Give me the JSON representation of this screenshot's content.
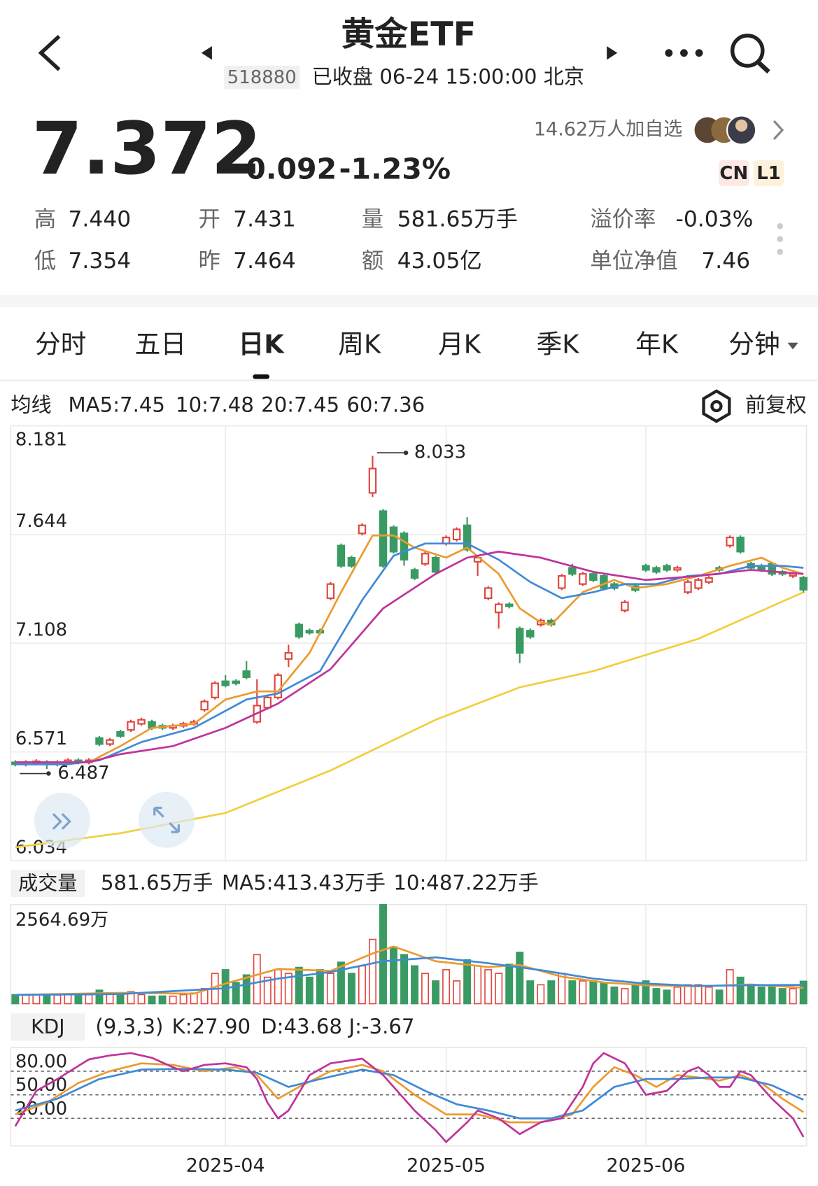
{
  "header": {
    "title": "黄金ETF",
    "code": "518880",
    "status": "已收盘 06-24 15:00:00 北京",
    "followers": "14.62万人加自选"
  },
  "quote": {
    "price": "7.372",
    "change": "-0.092",
    "change_pct": "-1.23%",
    "badges": [
      "CN",
      "L1"
    ]
  },
  "stats": [
    {
      "label": "高",
      "value": "7.440"
    },
    {
      "label": "开",
      "value": "7.431"
    },
    {
      "label": "量",
      "value": "581.65万手"
    },
    {
      "label": "溢价率",
      "value": "-0.03%"
    },
    {
      "label": "低",
      "value": "7.354"
    },
    {
      "label": "昨",
      "value": "7.464"
    },
    {
      "label": "额",
      "value": "43.05亿"
    },
    {
      "label": "单位净值",
      "value": "7.46"
    }
  ],
  "tabs": [
    "分时",
    "五日",
    "日K",
    "周K",
    "月K",
    "季K",
    "年K",
    "分钟"
  ],
  "selected_tab": 2,
  "chart_data": [
    {
      "type": "candlestick",
      "legend_title": "均线",
      "adjust": "前复权",
      "up_color": "#e0463f",
      "down_color": "#3a9a63",
      "ylim": [
        6.034,
        8.181
      ],
      "yticks": [
        6.034,
        6.571,
        7.108,
        7.644,
        8.181
      ],
      "grid": true,
      "open": [
        6.52,
        6.51,
        6.515,
        6.52,
        6.51,
        6.52,
        6.53,
        6.52,
        6.64,
        6.61,
        6.67,
        6.68,
        6.71,
        6.72,
        6.7,
        6.69,
        6.7,
        6.71,
        6.78,
        6.84,
        6.92,
        6.92,
        6.97,
        6.72,
        6.79,
        6.84,
        7.03,
        7.2,
        7.17,
        7.17,
        7.33,
        7.59,
        7.53,
        7.65,
        7.85,
        7.76,
        7.68,
        7.65,
        7.47,
        7.5,
        7.53,
        7.6,
        7.62,
        7.69,
        7.51,
        7.33,
        7.26,
        7.3,
        7.18,
        7.17,
        7.2,
        7.22,
        7.38,
        7.48,
        7.4,
        7.45,
        7.44,
        7.4,
        7.27,
        7.39,
        7.49,
        7.48,
        7.49,
        7.47,
        7.36,
        7.38,
        7.41,
        7.48,
        7.59,
        7.63,
        7.5,
        7.49,
        7.5,
        7.46,
        7.44,
        7.431
      ],
      "high": [
        6.53,
        6.53,
        6.535,
        6.53,
        6.53,
        6.54,
        6.54,
        6.54,
        6.65,
        6.64,
        6.68,
        6.73,
        6.74,
        6.73,
        6.71,
        6.71,
        6.72,
        6.73,
        6.83,
        6.92,
        6.95,
        6.93,
        7.02,
        6.93,
        6.85,
        6.96,
        7.1,
        7.21,
        7.18,
        7.18,
        7.41,
        7.6,
        7.54,
        7.7,
        8.033,
        7.77,
        7.69,
        7.66,
        7.48,
        7.56,
        7.54,
        7.64,
        7.68,
        7.73,
        7.54,
        7.39,
        7.31,
        7.31,
        7.19,
        7.18,
        7.23,
        7.23,
        7.45,
        7.5,
        7.46,
        7.46,
        7.45,
        7.41,
        7.32,
        7.4,
        7.5,
        7.49,
        7.5,
        7.49,
        7.42,
        7.43,
        7.44,
        7.49,
        7.64,
        7.64,
        7.51,
        7.5,
        7.51,
        7.47,
        7.46,
        7.44
      ],
      "low": [
        6.5,
        6.5,
        6.505,
        6.487,
        6.5,
        6.51,
        6.51,
        6.51,
        6.6,
        6.6,
        6.64,
        6.67,
        6.7,
        6.68,
        6.68,
        6.68,
        6.69,
        6.7,
        6.77,
        6.83,
        6.89,
        6.9,
        6.93,
        6.71,
        6.78,
        6.83,
        6.99,
        7.13,
        7.15,
        7.15,
        7.32,
        7.48,
        7.48,
        7.64,
        7.83,
        7.48,
        7.55,
        7.49,
        7.42,
        7.49,
        7.45,
        7.59,
        7.61,
        7.56,
        7.44,
        7.32,
        7.18,
        7.28,
        7.01,
        7.13,
        7.19,
        7.19,
        7.37,
        7.44,
        7.39,
        7.41,
        7.37,
        7.37,
        7.26,
        7.36,
        7.46,
        7.45,
        7.46,
        7.46,
        7.35,
        7.37,
        7.4,
        7.46,
        7.58,
        7.55,
        7.47,
        7.46,
        7.44,
        7.44,
        7.43,
        7.354
      ],
      "close": [
        6.51,
        6.52,
        6.525,
        6.51,
        6.52,
        6.53,
        6.52,
        6.53,
        6.61,
        6.63,
        6.65,
        6.72,
        6.73,
        6.69,
        6.69,
        6.7,
        6.71,
        6.72,
        6.82,
        6.91,
        6.9,
        6.91,
        6.94,
        6.8,
        6.84,
        6.95,
        7.06,
        7.14,
        7.16,
        7.16,
        7.4,
        7.49,
        7.49,
        7.69,
        7.97,
        7.49,
        7.56,
        7.52,
        7.43,
        7.55,
        7.46,
        7.63,
        7.67,
        7.57,
        7.53,
        7.38,
        7.3,
        7.29,
        7.06,
        7.14,
        7.22,
        7.2,
        7.44,
        7.45,
        7.45,
        7.42,
        7.38,
        7.38,
        7.31,
        7.37,
        7.47,
        7.46,
        7.47,
        7.48,
        7.41,
        7.42,
        7.43,
        7.47,
        7.63,
        7.56,
        7.48,
        7.47,
        7.45,
        7.45,
        7.45,
        7.372
      ],
      "series": [
        {
          "name": "MA5:7.45",
          "color": "#eb9b2e",
          "x": [
            0,
            7,
            10,
            13,
            17,
            20,
            23,
            25,
            28,
            31,
            34,
            36,
            38,
            41,
            43,
            46,
            48,
            50,
            51,
            54,
            57,
            59,
            62,
            65,
            68,
            71,
            73,
            75
          ],
          "values": [
            6.52,
            6.52,
            6.6,
            6.69,
            6.71,
            6.83,
            6.87,
            6.87,
            7.06,
            7.36,
            7.64,
            7.64,
            7.58,
            7.53,
            7.58,
            7.45,
            7.28,
            7.21,
            7.2,
            7.36,
            7.42,
            7.38,
            7.4,
            7.44,
            7.49,
            7.53,
            7.48,
            7.45
          ]
        },
        {
          "name": "10:7.48",
          "color": "#3f8ad8",
          "x": [
            0,
            5,
            8,
            12,
            17,
            22,
            25,
            29,
            33,
            36,
            39,
            43,
            46,
            49,
            52,
            55,
            58,
            61,
            64,
            67,
            70,
            73,
            75
          ],
          "values": [
            6.51,
            6.51,
            6.53,
            6.62,
            6.69,
            6.83,
            6.86,
            6.97,
            7.32,
            7.54,
            7.6,
            7.6,
            7.52,
            7.41,
            7.33,
            7.36,
            7.4,
            7.4,
            7.44,
            7.45,
            7.49,
            7.49,
            7.48
          ]
        },
        {
          "name": "20:7.45",
          "color": "#c0339b",
          "x": [
            0,
            7,
            10,
            15,
            20,
            25,
            30,
            35,
            40,
            43,
            46,
            50,
            55,
            60,
            65,
            70,
            75
          ],
          "values": [
            6.52,
            6.52,
            6.56,
            6.6,
            6.69,
            6.81,
            6.98,
            7.28,
            7.45,
            7.53,
            7.56,
            7.53,
            7.46,
            7.42,
            7.44,
            7.47,
            7.45
          ]
        },
        {
          "name": "60:7.36",
          "color": "#f0cf3c",
          "x": [
            0,
            10,
            20,
            30,
            40,
            48,
            55,
            65,
            75
          ],
          "values": [
            6.1,
            6.17,
            6.27,
            6.48,
            6.73,
            6.89,
            6.97,
            7.13,
            7.36
          ]
        }
      ]
    },
    {
      "type": "bar",
      "label": "成交量",
      "summary": "581.65万手",
      "ylim": [
        0,
        2564.69
      ],
      "yticks": [
        {
          "value": 2564.69,
          "label": "2564.69万"
        }
      ],
      "values": [
        235,
        220,
        240,
        230,
        225,
        235,
        240,
        230,
        350,
        240,
        275,
        310,
        235,
        195,
        200,
        195,
        235,
        275,
        390,
        785,
        880,
        550,
        745,
        1270,
        685,
        880,
        785,
        940,
        685,
        880,
        785,
        1075,
        785,
        980,
        1665,
        2564.69,
        1470,
        1270,
        980,
        785,
        590,
        880,
        590,
        1135,
        980,
        880,
        785,
        1020,
        1330,
        590,
        490,
        590,
        785,
        590,
        590,
        590,
        550,
        430,
        390,
        490,
        590,
        390,
        350,
        430,
        490,
        490,
        430,
        350,
        880,
        685,
        490,
        430,
        430,
        390,
        390,
        581.65
      ],
      "series": [
        {
          "name": "MA5:413.43万手",
          "color": "#eb9b2e",
          "x": [
            0,
            10,
            17,
            20,
            25,
            30,
            34,
            36,
            40,
            45,
            48,
            52,
            56,
            60,
            65,
            70,
            75
          ],
          "values": [
            230,
            280,
            260,
            520,
            900,
            850,
            1300,
            1480,
            1100,
            950,
            1000,
            700,
            550,
            480,
            450,
            500,
            413.43
          ]
        },
        {
          "name": "10:487.22万手",
          "color": "#3f8ad8",
          "x": [
            0,
            10,
            20,
            25,
            30,
            35,
            40,
            45,
            50,
            55,
            60,
            65,
            70,
            75
          ],
          "values": [
            230,
            250,
            400,
            650,
            820,
            1100,
            1200,
            1050,
            870,
            650,
            520,
            460,
            480,
            487.22
          ]
        }
      ]
    },
    {
      "type": "line",
      "label": "KDJ",
      "params": "(9,3,3)",
      "ylim": [
        -15,
        110
      ],
      "yticks": [
        {
          "value": 20,
          "label": "20.00"
        },
        {
          "value": 50,
          "label": "50.00"
        },
        {
          "value": 80,
          "label": "80.00"
        }
      ],
      "categories": [
        null,
        null,
        null,
        null,
        null,
        null,
        null,
        null,
        null,
        null,
        null,
        null,
        null,
        null,
        null,
        null,
        null,
        null,
        null,
        null,
        "2025-04",
        null,
        null,
        null,
        null,
        null,
        null,
        null,
        null,
        null,
        null,
        null,
        null,
        null,
        null,
        null,
        null,
        null,
        null,
        null,
        null,
        "2025-05",
        null,
        null,
        null,
        null,
        null,
        null,
        null,
        null,
        null,
        null,
        null,
        null,
        null,
        null,
        null,
        null,
        null,
        null,
        "2025-06",
        null,
        null,
        null,
        null,
        null,
        null,
        null,
        null,
        null,
        null,
        null,
        null,
        null,
        null,
        null
      ],
      "series": [
        {
          "name": "K:27.90",
          "color": "#eb9b2e",
          "x": [
            0,
            3,
            6,
            9,
            12,
            15,
            18,
            21,
            23,
            25,
            27,
            30,
            33,
            35,
            38,
            41,
            44,
            47,
            50,
            53,
            55,
            57,
            59,
            61,
            63,
            65,
            67,
            69,
            71,
            73,
            75
          ],
          "values": [
            25,
            40,
            65,
            80,
            90,
            88,
            80,
            85,
            75,
            45,
            60,
            80,
            88,
            80,
            50,
            25,
            25,
            15,
            15,
            25,
            60,
            85,
            75,
            60,
            75,
            72,
            68,
            75,
            65,
            45,
            27.9
          ]
        },
        {
          "name": "D:43.68",
          "color": "#3f8ad8",
          "x": [
            0,
            4,
            8,
            12,
            16,
            20,
            23,
            26,
            29,
            33,
            36,
            39,
            42,
            45,
            48,
            51,
            54,
            57,
            60,
            63,
            66,
            69,
            72,
            75
          ],
          "values": [
            30,
            45,
            70,
            82,
            83,
            82,
            78,
            60,
            70,
            82,
            75,
            55,
            38,
            30,
            20,
            20,
            30,
            60,
            70,
            70,
            72,
            72,
            62,
            43.68
          ]
        },
        {
          "name": "J:-3.67",
          "color": "#c0339b",
          "x": [
            0,
            2,
            4,
            7,
            9,
            11,
            13,
            15,
            16,
            18,
            20,
            22,
            23,
            24,
            25,
            26,
            28,
            30,
            33,
            35,
            38,
            40,
            41,
            43,
            44,
            46,
            48,
            50,
            52,
            54,
            55,
            56,
            58,
            60,
            62,
            64,
            65,
            66,
            67,
            68,
            69,
            70,
            72,
            74,
            75
          ],
          "values": [
            10,
            55,
            70,
            95,
            100,
            103,
            97,
            85,
            80,
            88,
            90,
            85,
            70,
            40,
            20,
            30,
            75,
            90,
            96,
            75,
            30,
            5,
            -10,
            15,
            30,
            20,
            0,
            15,
            20,
            60,
            90,
            103,
            90,
            50,
            55,
            80,
            85,
            75,
            60,
            60,
            80,
            75,
            45,
            20,
            -3.67
          ]
        }
      ]
    }
  ]
}
